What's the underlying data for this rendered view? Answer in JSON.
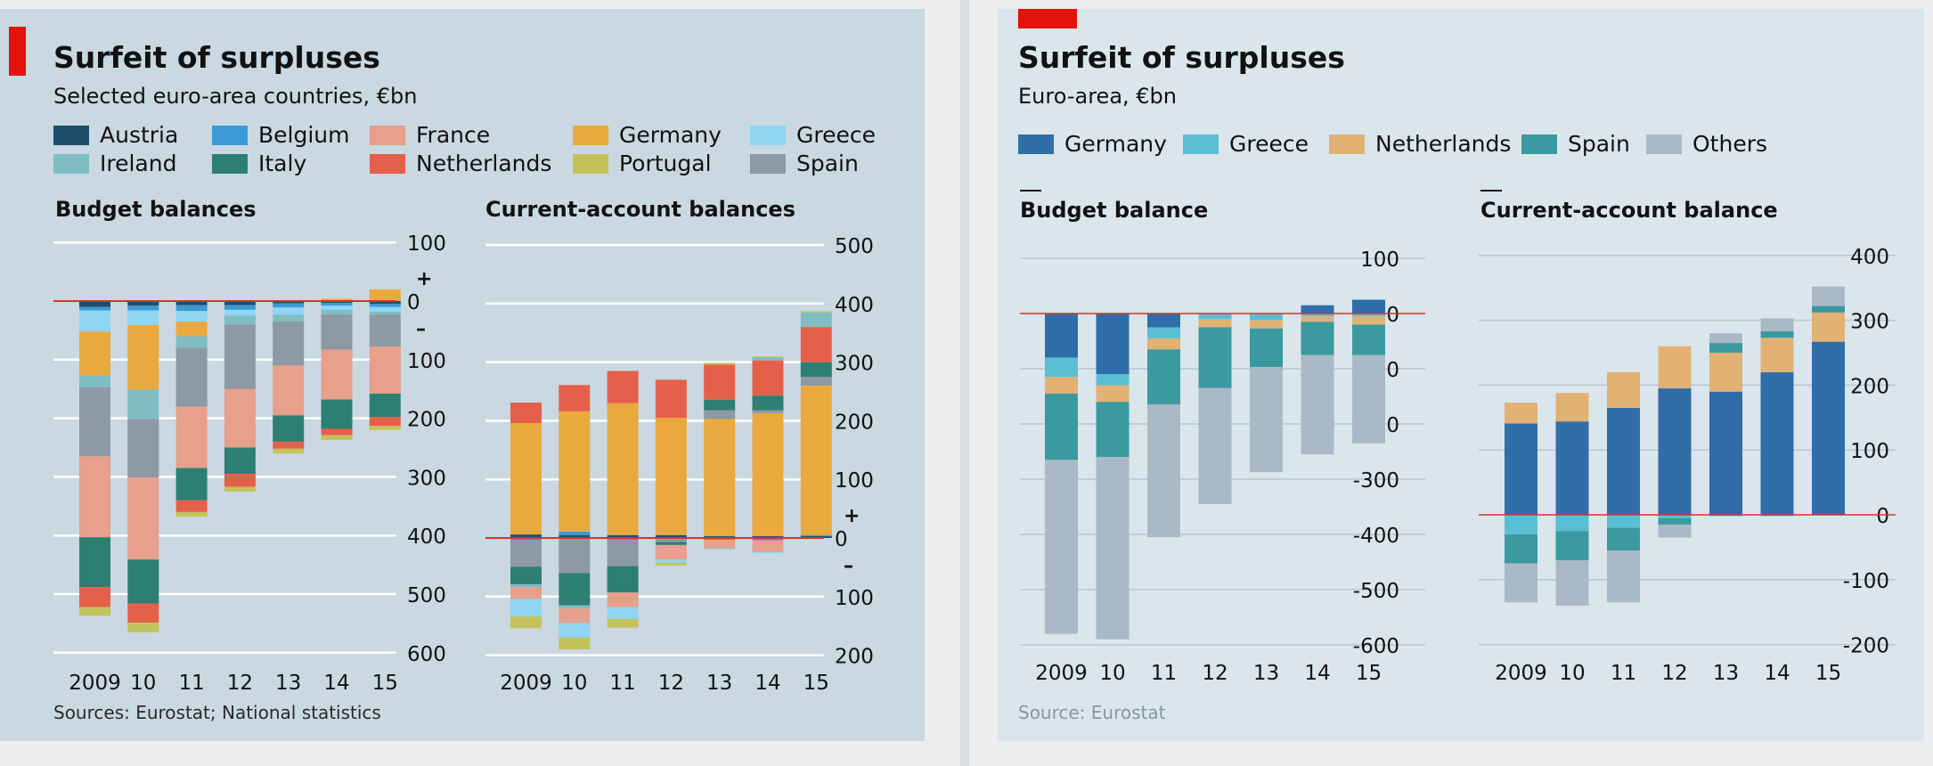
{
  "figures": [
    {
      "id": "left",
      "title": "Surfeit of surpluses",
      "subtitle": "Selected euro-area countries, €bn",
      "source": "Sources: Eurostat; National statistics",
      "accent_color": "#e3120b",
      "legend": [
        {
          "name": "Austria",
          "color": "#1f4e6b"
        },
        {
          "name": "Belgium",
          "color": "#3c9ad6"
        },
        {
          "name": "France",
          "color": "#e6a08b"
        },
        {
          "name": "Germany",
          "color": "#e9a93f"
        },
        {
          "name": "Greece",
          "color": "#8fd6f2"
        },
        {
          "name": "Ireland",
          "color": "#7fbdc2"
        },
        {
          "name": "Italy",
          "color": "#2d7f72"
        },
        {
          "name": "Netherlands",
          "color": "#e5604a"
        },
        {
          "name": "Portugal",
          "color": "#c3c35a"
        },
        {
          "name": "Spain",
          "color": "#8d99a3"
        }
      ]
    },
    {
      "id": "right",
      "title": "Surfeit of surpluses",
      "subtitle": "Euro-area, €bn",
      "source": "Source: Eurostat",
      "accent_color": "#e3120b",
      "legend": [
        {
          "name": "Germany",
          "color": "#2f6ea8"
        },
        {
          "name": "Greece",
          "color": "#5bbfd3"
        },
        {
          "name": "Netherlands",
          "color": "#e2b174"
        },
        {
          "name": "Spain",
          "color": "#3a9aa0"
        },
        {
          "name": "Others",
          "color": "#a9bac6"
        }
      ]
    }
  ],
  "chart_data": [
    {
      "type": "bar",
      "stacked": true,
      "panel": "left",
      "title": "Budget balances",
      "categories": [
        "2009",
        "10",
        "11",
        "12",
        "13",
        "14",
        "15"
      ],
      "ylim": [
        -600,
        100
      ],
      "yticks": [
        100,
        0,
        -100,
        -200,
        -300,
        -400,
        -500,
        -600
      ],
      "ytick_labels": [
        "100",
        "0",
        "100",
        "200",
        "300",
        "400",
        "500",
        "600"
      ],
      "sign_labels": {
        "plus": "+",
        "minus": "–"
      },
      "grid": true,
      "series": [
        {
          "name": "Austria",
          "values": [
            -10,
            -8,
            -7,
            -7,
            -4,
            -3,
            -5
          ]
        },
        {
          "name": "Belgium",
          "values": [
            -6,
            -8,
            -10,
            -8,
            -7,
            -5,
            -5
          ]
        },
        {
          "name": "Greece",
          "values": [
            -36,
            -25,
            -18,
            -10,
            -12,
            -7,
            -8
          ]
        },
        {
          "name": "Germany",
          "values": [
            -75,
            -110,
            -25,
            0,
            0,
            4,
            20
          ]
        },
        {
          "name": "Ireland",
          "values": [
            -20,
            -50,
            -20,
            -15,
            -12,
            -8,
            -5
          ]
        },
        {
          "name": "Spain",
          "values": [
            -118,
            -100,
            -100,
            -110,
            -75,
            -60,
            -55
          ]
        },
        {
          "name": "France",
          "values": [
            -138,
            -140,
            -105,
            -100,
            -85,
            -85,
            -80
          ]
        },
        {
          "name": "Italy",
          "values": [
            -85,
            -75,
            -55,
            -45,
            -45,
            -50,
            -40
          ]
        },
        {
          "name": "Netherlands",
          "values": [
            -34,
            -33,
            -20,
            -22,
            -12,
            -11,
            -15
          ]
        },
        {
          "name": "Portugal",
          "values": [
            -15,
            -16,
            -8,
            -8,
            -8,
            -8,
            -7
          ]
        }
      ]
    },
    {
      "type": "bar",
      "stacked": true,
      "panel": "left",
      "title": "Current-account balances",
      "categories": [
        "2009",
        "10",
        "11",
        "12",
        "13",
        "14",
        "15"
      ],
      "ylim": [
        -200,
        500
      ],
      "yticks": [
        500,
        400,
        300,
        200,
        100,
        0,
        -100,
        -200
      ],
      "ytick_labels": [
        "500",
        "400",
        "300",
        "200",
        "100",
        "0",
        "100",
        "200"
      ],
      "sign_labels": {
        "plus": "+",
        "minus": "–"
      },
      "grid": true,
      "series": [
        {
          "name": "Austria",
          "values": [
            6,
            5,
            5,
            5,
            3,
            3,
            3
          ]
        },
        {
          "name": "Belgium",
          "values": [
            -4,
            6,
            -3,
            -2,
            -3,
            -4,
            2
          ]
        },
        {
          "name": "Germany",
          "values": [
            190,
            205,
            225,
            200,
            200,
            210,
            255
          ]
        },
        {
          "name": "Spain",
          "values": [
            -45,
            -60,
            -45,
            -5,
            15,
            5,
            15
          ]
        },
        {
          "name": "Italy",
          "values": [
            -30,
            -55,
            -45,
            -5,
            18,
            25,
            25
          ]
        },
        {
          "name": "Netherlands",
          "values": [
            35,
            45,
            55,
            65,
            60,
            60,
            60
          ]
        },
        {
          "name": "Ireland",
          "values": [
            -5,
            -5,
            0,
            0,
            0,
            5,
            25
          ]
        },
        {
          "name": "France",
          "values": [
            -20,
            -25,
            -25,
            -25,
            -15,
            -20,
            0
          ]
        },
        {
          "name": "Greece",
          "values": [
            -30,
            -25,
            -20,
            -5,
            -2,
            -2,
            0
          ]
        },
        {
          "name": "Portugal",
          "values": [
            -20,
            -20,
            -15,
            -5,
            3,
            2,
            2
          ]
        }
      ]
    },
    {
      "type": "bar",
      "stacked": true,
      "panel": "right",
      "title": "Budget balance",
      "categories": [
        "2009",
        "10",
        "11",
        "12",
        "13",
        "14",
        "15"
      ],
      "ylim": [
        -600,
        100
      ],
      "yticks": [
        100,
        0,
        -100,
        -200,
        -300,
        -400,
        -500,
        -600
      ],
      "ytick_labels": [
        "100",
        "0",
        "-100",
        "-200",
        "-300",
        "-400",
        "-500",
        "-600"
      ],
      "grid": true,
      "series": [
        {
          "name": "Germany",
          "values": [
            -80,
            -110,
            -25,
            0,
            0,
            15,
            25
          ]
        },
        {
          "name": "Greece",
          "values": [
            -35,
            -20,
            -20,
            -10,
            -12,
            -5,
            -5
          ]
        },
        {
          "name": "Netherlands",
          "values": [
            -30,
            -30,
            -20,
            -15,
            -15,
            -10,
            -15
          ]
        },
        {
          "name": "Spain",
          "values": [
            -120,
            -100,
            -100,
            -110,
            -70,
            -60,
            -55
          ]
        },
        {
          "name": "Others",
          "values": [
            -315,
            -330,
            -240,
            -210,
            -190,
            -180,
            -160
          ]
        }
      ]
    },
    {
      "type": "bar",
      "stacked": true,
      "panel": "right",
      "title": "Current-account balance",
      "categories": [
        "2009",
        "10",
        "11",
        "12",
        "13",
        "14",
        "15"
      ],
      "ylim": [
        -200,
        400
      ],
      "yticks": [
        400,
        300,
        200,
        100,
        0,
        -100,
        -200
      ],
      "ytick_labels": [
        "400",
        "300",
        "200",
        "100",
        "0",
        "-100",
        "-200"
      ],
      "grid": true,
      "series": [
        {
          "name": "Germany",
          "values": [
            141,
            144,
            165,
            195,
            190,
            220,
            267
          ]
        },
        {
          "name": "Greece",
          "values": [
            -30,
            -25,
            -20,
            -5,
            -2,
            -2,
            0
          ]
        },
        {
          "name": "Netherlands",
          "values": [
            32,
            44,
            55,
            65,
            60,
            53,
            45
          ]
        },
        {
          "name": "Spain",
          "values": [
            -45,
            -45,
            -35,
            -10,
            15,
            10,
            10
          ]
        },
        {
          "name": "Others",
          "values": [
            -60,
            -70,
            -80,
            -20,
            15,
            20,
            30
          ]
        }
      ]
    }
  ]
}
